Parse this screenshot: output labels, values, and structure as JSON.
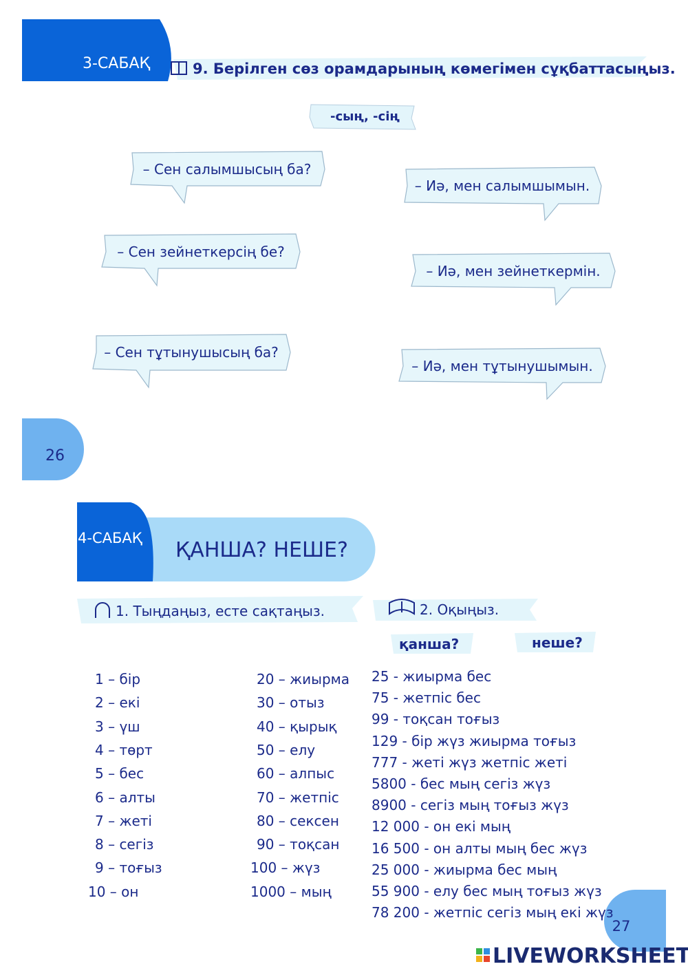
{
  "lesson3": {
    "badge": "3-САБАҚ",
    "task": "9. Берілген сөз орамдарының  көмегімен сұқбаттасыңыз.",
    "suffix": "-сың, -сің",
    "questions": [
      "– Сен салымшысың ба?",
      "– Сен зейнеткерсің бе?",
      "– Сен тұтынушысың ба?"
    ],
    "answers": [
      "– Иә, мен салымшымын.",
      "– Иә, мен зейнеткермін.",
      "– Иә, мен тұтынушымын."
    ],
    "page_number": "26"
  },
  "lesson4": {
    "badge": "4-САБАҚ",
    "title": "ҚАНША? НЕШЕ?",
    "task1": "1. Тыңдаңыз, есте сақтаңыз.",
    "task2": "2. Оқыңыз.",
    "words": [
      "қанша?",
      "неше?"
    ],
    "column1": [
      "1 – бір",
      "2 – екі",
      "3 – үш",
      "4 – төрт",
      "5 – бес",
      "6 – алты",
      "7 – жеті",
      "8 – сегіз",
      "9 – тоғыз",
      "10 – он"
    ],
    "column2": [
      "20 – жиырма",
      "30 – отыз",
      "40 – қырық",
      "50 – елу",
      "60 – алпыс",
      "70 – жетпіс",
      "80 – сексен",
      "90 – тоқсан",
      "100 – жүз",
      "1000 – мың"
    ],
    "column3": [
      "25 - жиырма бес",
      "75 - жетпіс бес",
      "99 - тоқсан тоғыз",
      "129 - бір жүз жиырма тоғыз",
      "777 - жеті жүз жетпіс жеті",
      "5800 - бес мың сегіз жүз",
      "8900 - сегіз мың тоғыз жүз",
      "12 000 - он екі мың",
      "16 500 - он алты мың бес жүз",
      "25 000 - жиырма бес мың",
      "55 900 - елу бес мың тоғыз жүз",
      "78 200 - жетпіс сегіз мың екі жүз"
    ],
    "page_number": "27"
  },
  "footer": {
    "brand": "LIVEWORKSHEETS"
  }
}
